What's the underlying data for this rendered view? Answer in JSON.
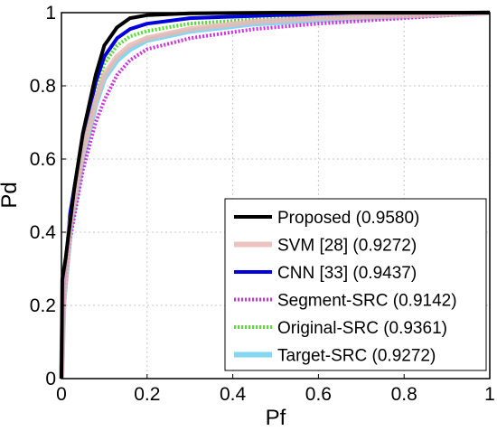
{
  "chart_data": {
    "type": "line",
    "title": "",
    "xlabel": "Pf",
    "ylabel": "Pd",
    "xlim": [
      0,
      1
    ],
    "ylim": [
      0,
      1
    ],
    "xticks": [
      "0",
      "0.2",
      "0.4",
      "0.6",
      "0.8",
      "1"
    ],
    "yticks": [
      "0",
      "0.2",
      "0.4",
      "0.6",
      "0.8",
      "1"
    ],
    "grid": true,
    "legend_position": "bottom-right",
    "series": [
      {
        "name": "Proposed (0.9580)",
        "color": "#000000",
        "style": "solid",
        "x": [
          0,
          0.002,
          0.01,
          0.03,
          0.05,
          0.08,
          0.1,
          0.13,
          0.16,
          0.2,
          0.3,
          0.5,
          0.7,
          1.0
        ],
        "y": [
          0,
          0.27,
          0.33,
          0.52,
          0.67,
          0.83,
          0.91,
          0.96,
          0.985,
          0.993,
          0.998,
          1.0,
          1.0,
          1.0
        ]
      },
      {
        "name": "SVM [28] (0.9272)",
        "color": "#e9b9b4",
        "style": "solid-thick",
        "x": [
          0,
          0.005,
          0.02,
          0.05,
          0.08,
          0.1,
          0.13,
          0.16,
          0.2,
          0.3,
          0.45,
          0.6,
          0.8,
          1.0
        ],
        "y": [
          0,
          0.22,
          0.42,
          0.62,
          0.76,
          0.83,
          0.88,
          0.91,
          0.93,
          0.955,
          0.975,
          0.985,
          0.992,
          1.0
        ]
      },
      {
        "name": "CNN [33] (0.9437)",
        "color": "#0000dd",
        "style": "solid",
        "x": [
          0,
          0.005,
          0.02,
          0.05,
          0.08,
          0.1,
          0.13,
          0.16,
          0.2,
          0.3,
          0.5,
          0.7,
          1.0
        ],
        "y": [
          0,
          0.25,
          0.45,
          0.66,
          0.81,
          0.88,
          0.93,
          0.955,
          0.97,
          0.985,
          0.993,
          0.997,
          1.0
        ]
      },
      {
        "name": "Segment-SRC (0.9142)",
        "color": "#cc33dd",
        "style": "dotted",
        "x": [
          0,
          0.005,
          0.02,
          0.05,
          0.08,
          0.1,
          0.13,
          0.16,
          0.2,
          0.3,
          0.45,
          0.6,
          0.8,
          1.0
        ],
        "y": [
          0,
          0.2,
          0.38,
          0.57,
          0.7,
          0.76,
          0.83,
          0.87,
          0.9,
          0.93,
          0.955,
          0.97,
          0.985,
          1.0
        ]
      },
      {
        "name": "Original-SRC (0.9361)",
        "color": "#55dd33",
        "style": "dotted",
        "x": [
          0,
          0.005,
          0.02,
          0.05,
          0.08,
          0.1,
          0.13,
          0.16,
          0.2,
          0.3,
          0.5,
          0.7,
          1.0
        ],
        "y": [
          0,
          0.23,
          0.43,
          0.63,
          0.78,
          0.86,
          0.91,
          0.935,
          0.95,
          0.97,
          0.985,
          0.993,
          1.0
        ]
      },
      {
        "name": "Target-SRC (0.9272)",
        "color": "#6fd0f0",
        "style": "solid-thick",
        "x": [
          0,
          0.005,
          0.02,
          0.05,
          0.08,
          0.1,
          0.13,
          0.16,
          0.2,
          0.3,
          0.45,
          0.6,
          0.8,
          1.0
        ],
        "y": [
          0,
          0.21,
          0.4,
          0.6,
          0.75,
          0.82,
          0.87,
          0.9,
          0.925,
          0.95,
          0.97,
          0.98,
          0.99,
          1.0
        ]
      }
    ]
  }
}
